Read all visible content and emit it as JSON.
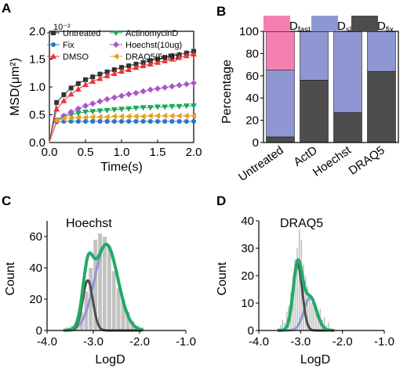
{
  "panels": {
    "a": {
      "letter": "A"
    },
    "b": {
      "letter": "B"
    },
    "c": {
      "letter": "C"
    },
    "d": {
      "letter": "D"
    }
  },
  "chart_data": [
    {
      "panel": "A",
      "type": "line",
      "xlabel": "Time(s)",
      "ylabel": "MSD(μm²)",
      "y_multiplier": "10⁻²",
      "xlim": [
        0,
        2.0
      ],
      "ylim": [
        0,
        2.0
      ],
      "xticks": [
        "0.0",
        "0.5",
        "1.0",
        "1.5",
        "2.0"
      ],
      "yticks": [
        "0.0",
        "0.5",
        "1.0",
        "1.5",
        "2.0"
      ],
      "legend_position": "top-left",
      "x": [
        0,
        0.1,
        0.2,
        0.3,
        0.4,
        0.5,
        0.6,
        0.7,
        0.8,
        0.9,
        1.0,
        1.1,
        1.2,
        1.3,
        1.4,
        1.5,
        1.6,
        1.7,
        1.8,
        1.9,
        2.0
      ],
      "series": [
        {
          "name": "Untreated",
          "color": "#333333",
          "marker": "square",
          "values": [
            0,
            0.72,
            0.86,
            0.98,
            1.06,
            1.13,
            1.18,
            1.23,
            1.27,
            1.31,
            1.35,
            1.38,
            1.41,
            1.44,
            1.47,
            1.5,
            1.53,
            1.56,
            1.58,
            1.61,
            1.64
          ]
        },
        {
          "name": "ActinomycinD",
          "color": "#1aa85a",
          "marker": "triangle-down",
          "values": [
            0,
            0.4,
            0.46,
            0.5,
            0.53,
            0.55,
            0.56,
            0.57,
            0.58,
            0.59,
            0.6,
            0.61,
            0.62,
            0.63,
            0.63,
            0.64,
            0.64,
            0.65,
            0.65,
            0.66,
            0.66
          ]
        },
        {
          "name": "Fix",
          "color": "#2277cc",
          "marker": "circle",
          "values": [
            0,
            0.37,
            0.38,
            0.38,
            0.38,
            0.38,
            0.38,
            0.38,
            0.38,
            0.38,
            0.38,
            0.38,
            0.38,
            0.38,
            0.38,
            0.38,
            0.38,
            0.38,
            0.38,
            0.38,
            0.38
          ]
        },
        {
          "name": "Hoechst(10ug)",
          "color": "#aa55cc",
          "marker": "diamond",
          "values": [
            0,
            0.4,
            0.48,
            0.55,
            0.61,
            0.66,
            0.7,
            0.74,
            0.78,
            0.81,
            0.84,
            0.87,
            0.89,
            0.92,
            0.95,
            0.97,
            0.99,
            1.01,
            1.03,
            1.05,
            1.07
          ]
        },
        {
          "name": "DMSO",
          "color": "#ee3333",
          "marker": "triangle-up",
          "values": [
            0,
            0.6,
            0.75,
            0.87,
            0.96,
            1.04,
            1.1,
            1.15,
            1.2,
            1.24,
            1.28,
            1.31,
            1.35,
            1.38,
            1.41,
            1.44,
            1.47,
            1.5,
            1.53,
            1.56,
            1.59
          ]
        },
        {
          "name": "DRAQ5(5uM)",
          "color": "#e8a020",
          "marker": "triangle-left",
          "values": [
            0,
            0.4,
            0.43,
            0.44,
            0.45,
            0.45,
            0.46,
            0.46,
            0.46,
            0.47,
            0.47,
            0.47,
            0.47,
            0.47,
            0.48,
            0.48,
            0.48,
            0.48,
            0.48,
            0.48,
            0.48
          ]
        }
      ]
    },
    {
      "panel": "B",
      "type": "bar",
      "stacked": true,
      "ylabel": "Percentage",
      "ylim": [
        0,
        100
      ],
      "yticks": [
        "0",
        "20",
        "40",
        "60",
        "80",
        "100"
      ],
      "categories": [
        "Untreated",
        "ActD",
        "Hoechst",
        "DRAQ5"
      ],
      "legend": [
        {
          "main": "D",
          "sub": "fast",
          "color": "#f47fb0"
        },
        {
          "main": "D",
          "sub": "slow",
          "color": "#8e97d2"
        },
        {
          "main": "D",
          "sub": "fix",
          "color": "#4d4d4d"
        }
      ],
      "series": [
        {
          "name": "Dfix",
          "color": "#4d4d4d",
          "values": [
            5,
            56,
            27,
            64
          ]
        },
        {
          "name": "Dslow",
          "color": "#8e97d2",
          "values": [
            60,
            44,
            73,
            36
          ]
        },
        {
          "name": "Dfast",
          "color": "#f47fb0",
          "values": [
            35,
            0,
            0,
            0
          ]
        }
      ]
    },
    {
      "panel": "C",
      "type": "bar",
      "subtype": "histogram-with-gaussian-fits",
      "annotation": "Hoechst",
      "xlabel": "LogD",
      "ylabel": "Count",
      "xlim": [
        -4.0,
        -1.0
      ],
      "ylim": [
        0,
        70
      ],
      "xticks": [
        "-4.0",
        "-3.0",
        "-2.0",
        "-1.0"
      ],
      "yticks": [
        "0",
        "20",
        "40",
        "60"
      ],
      "bin_width": 0.1,
      "bins_left": [
        -3.6,
        -3.5,
        -3.4,
        -3.3,
        -3.2,
        -3.1,
        -3.0,
        -2.9,
        -2.8,
        -2.7,
        -2.6,
        -2.5,
        -2.4,
        -2.3,
        -2.2,
        -2.1,
        -2.0
      ],
      "counts": [
        2,
        3,
        5,
        12,
        25,
        40,
        58,
        62,
        60,
        54,
        38,
        27,
        20,
        12,
        6,
        3,
        2
      ],
      "fits": [
        {
          "name": "total",
          "color": "#22aa66",
          "width": 4
        },
        {
          "name": "fast",
          "color": "#8e97d2",
          "width": 3
        },
        {
          "name": "slow",
          "color": "#4d4d4d",
          "width": 3
        }
      ]
    },
    {
      "panel": "D",
      "type": "bar",
      "subtype": "histogram-with-gaussian-fits",
      "annotation": "DRAQ5",
      "xlabel": "LogD",
      "ylabel": "Count",
      "xlim": [
        -4.0,
        -1.0
      ],
      "ylim": [
        0,
        40
      ],
      "xticks": [
        "-4.0",
        "-3.0",
        "-2.0",
        "-1.0"
      ],
      "yticks": [
        "0",
        "10",
        "20",
        "30",
        "40"
      ],
      "bin_width": 0.05,
      "bins_left": [
        -3.55,
        -3.5,
        -3.45,
        -3.4,
        -3.35,
        -3.3,
        -3.25,
        -3.2,
        -3.15,
        -3.1,
        -3.05,
        -3.0,
        -2.95,
        -2.9,
        -2.85,
        -2.8,
        -2.75,
        -2.7,
        -2.65,
        -2.6,
        -2.55,
        -2.5,
        -2.45,
        -2.4,
        -2.35,
        -2.3
      ],
      "counts": [
        1,
        2,
        4,
        3,
        7,
        9,
        14,
        20,
        26,
        30,
        37,
        33,
        24,
        20,
        16,
        12,
        10,
        9,
        7,
        6,
        8,
        4,
        5,
        2,
        3,
        1
      ],
      "fits": [
        {
          "name": "total",
          "color": "#22aa66",
          "width": 4
        },
        {
          "name": "fast",
          "color": "#8e97d2",
          "width": 3
        },
        {
          "name": "slow",
          "color": "#4d4d4d",
          "width": 3
        }
      ]
    }
  ]
}
